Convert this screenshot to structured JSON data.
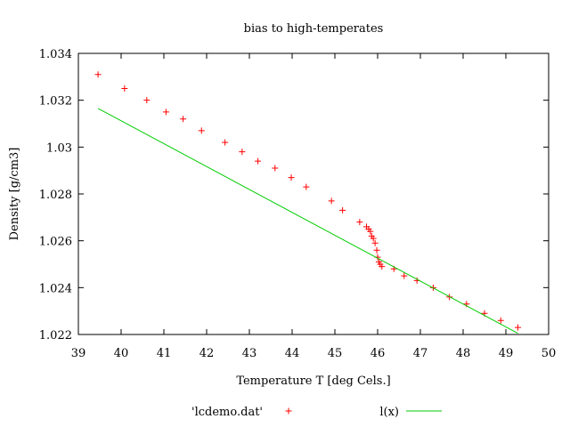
{
  "chart_data": {
    "type": "scatter",
    "title": "bias to high-temperates",
    "xlabel": "Temperature T  [deg Cels.]",
    "ylabel": "Density [g/cm3]",
    "xlim": [
      39,
      50
    ],
    "ylim": [
      1.022,
      1.034
    ],
    "xticks": [
      39,
      40,
      41,
      42,
      43,
      44,
      45,
      46,
      47,
      48,
      49,
      50
    ],
    "yticks": [
      1.022,
      1.024,
      1.026,
      1.028,
      1.03,
      1.032,
      1.034
    ],
    "ytick_labels": [
      "1.022",
      "1.024",
      "1.026",
      "1.028",
      "1.03",
      "1.032",
      "1.034"
    ],
    "grid": false,
    "legend": "bottom",
    "series": [
      {
        "name": "'lcdemo.dat'",
        "type": "scatter",
        "marker": "+",
        "color": "#ff0000",
        "x": [
          39.46,
          40.08,
          40.6,
          41.05,
          41.45,
          41.88,
          42.43,
          42.83,
          43.2,
          43.6,
          43.98,
          44.33,
          44.92,
          45.18,
          45.58,
          45.74,
          45.79,
          45.83,
          45.86,
          45.9,
          45.94,
          45.98,
          46.0,
          46.03,
          46.06,
          46.1,
          46.38,
          46.62,
          46.92,
          47.3,
          47.68,
          48.08,
          48.5,
          48.88,
          49.28
        ],
        "y": [
          1.0331,
          1.0325,
          1.032,
          1.0315,
          1.0312,
          1.0307,
          1.0302,
          1.0298,
          1.0294,
          1.0291,
          1.0287,
          1.0283,
          1.0277,
          1.0273,
          1.0268,
          1.0266,
          1.0265,
          1.0264,
          1.0262,
          1.0261,
          1.0259,
          1.0256,
          1.0253,
          1.0251,
          1.025,
          1.0249,
          1.0248,
          1.0245,
          1.0243,
          1.024,
          1.0236,
          1.0233,
          1.0229,
          1.0226,
          1.0223
        ]
      },
      {
        "name": "l(x)",
        "type": "line",
        "color": "#00cc00",
        "x": [
          39.46,
          49.28
        ],
        "y": [
          1.03165,
          1.02205
        ]
      }
    ]
  }
}
